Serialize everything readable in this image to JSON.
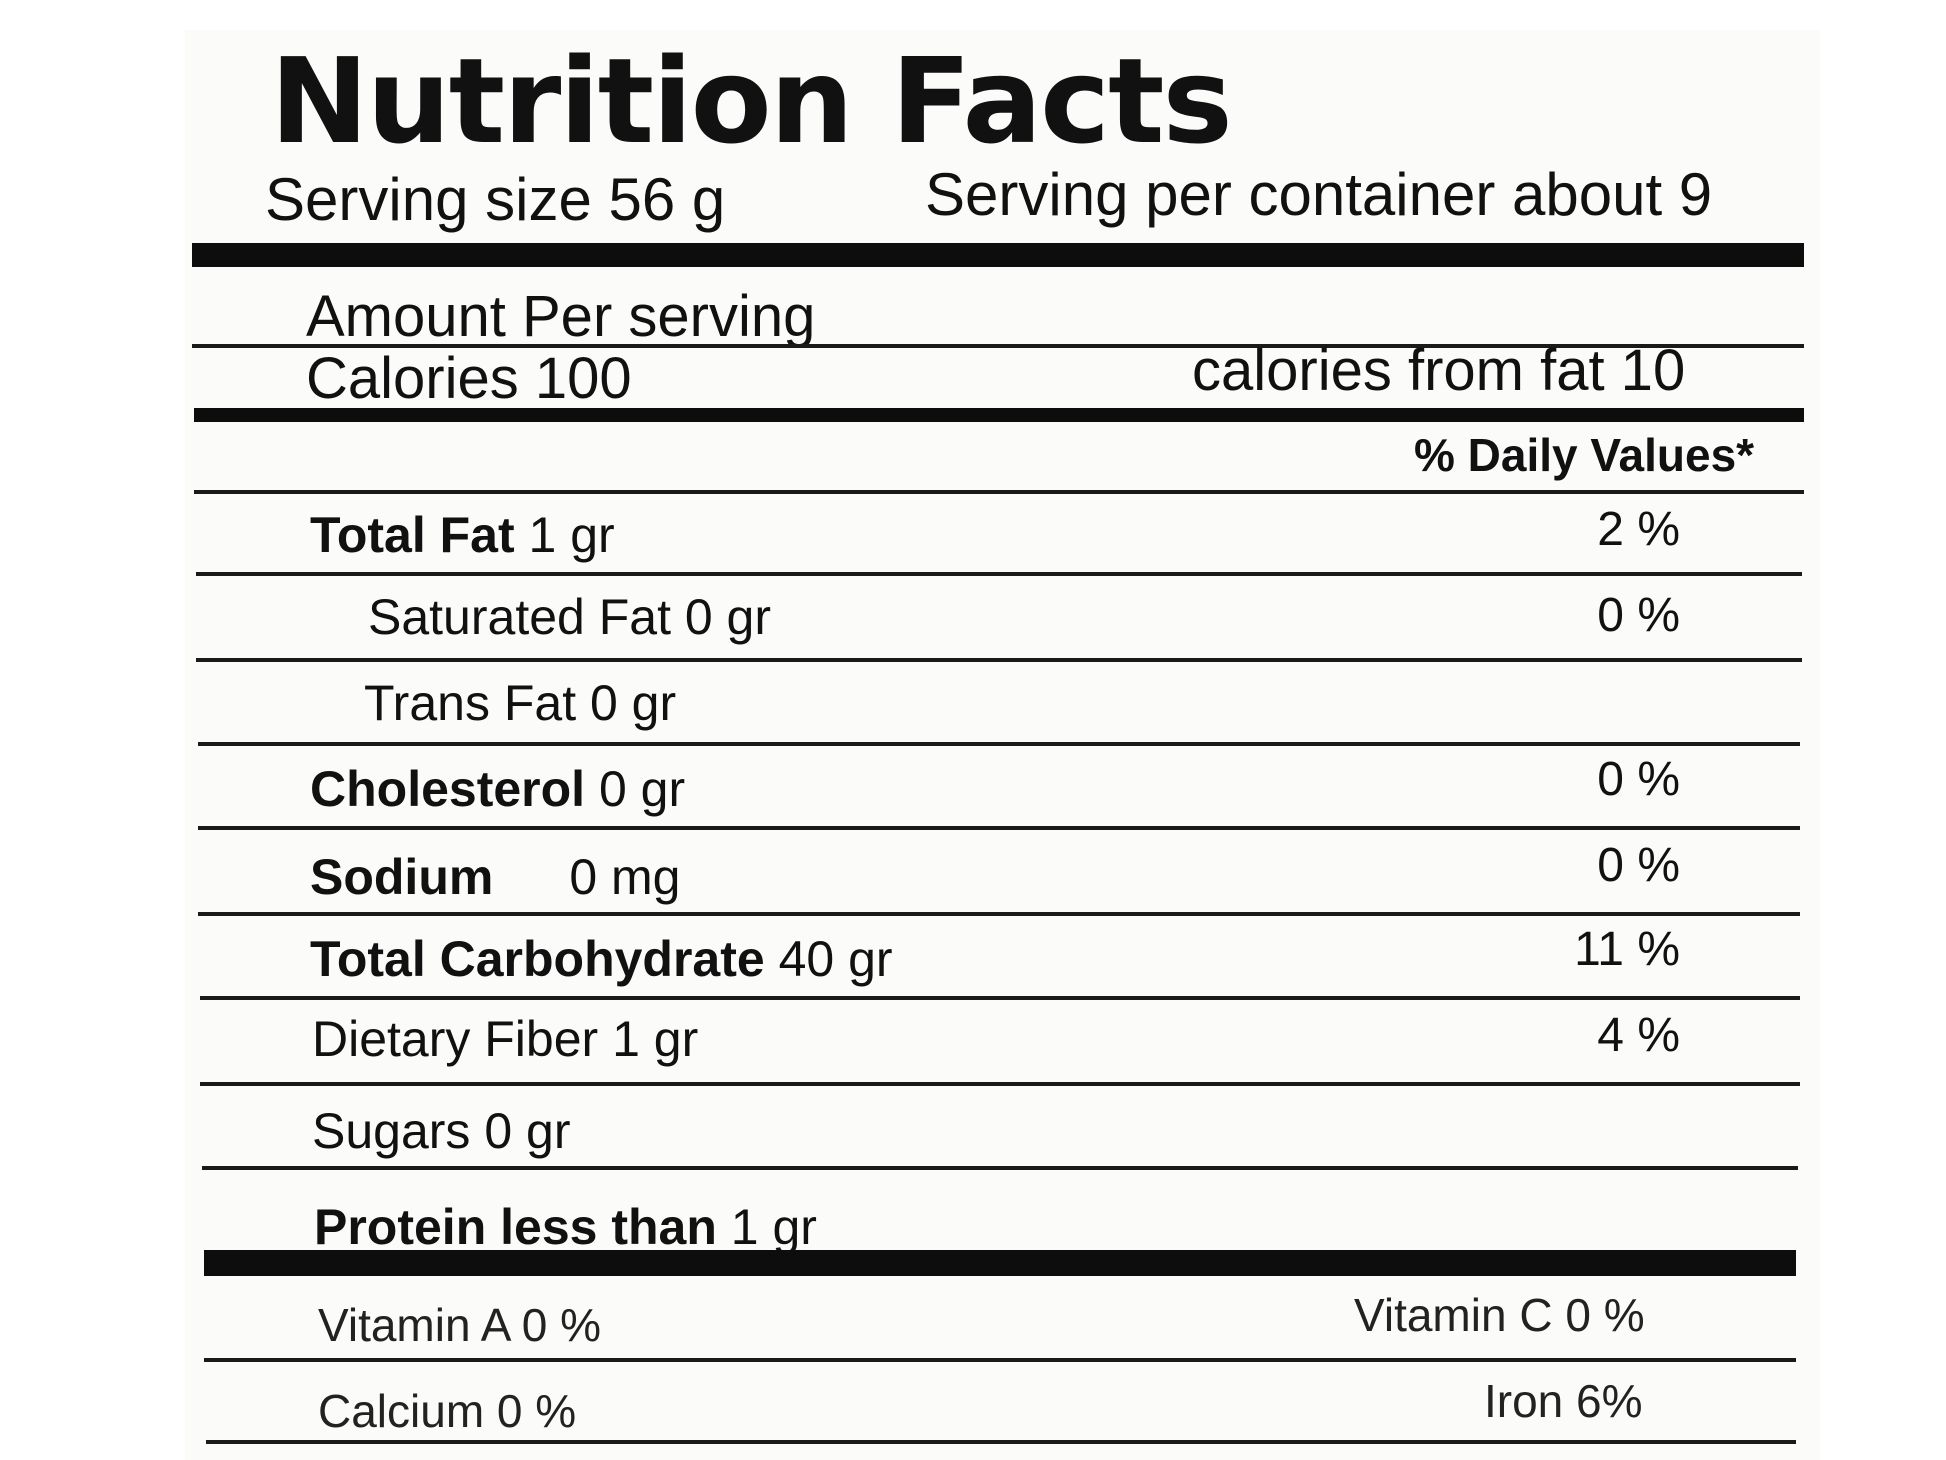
{
  "header": {
    "title": "Nutrition Facts",
    "serving_size": "Serving size 56 g",
    "servings_per_container": "Serving per container about  9"
  },
  "calories": {
    "amount_label": "Amount Per serving",
    "calories_label": "Calories 100",
    "calories_from_fat": "calories from fat 10"
  },
  "daily_values_header": "% Daily Values*",
  "nutrients": {
    "total_fat": {
      "name": "Total Fat",
      "amount": "1 gr",
      "dv": "2 %"
    },
    "saturated_fat": {
      "label": "Saturated Fat 0 gr",
      "dv": "0 %"
    },
    "trans_fat": {
      "label": "Trans Fat 0 gr"
    },
    "cholesterol": {
      "name": "Cholesterol",
      "amount": "0 gr",
      "dv": "0 %"
    },
    "sodium": {
      "name": "Sodium",
      "amount": "0 mg",
      "dv": "0 %"
    },
    "total_carbohydrate": {
      "name": "Total Carbohydrate",
      "amount": "40 gr",
      "dv": "11 %"
    },
    "dietary_fiber": {
      "label": "Dietary Fiber 1 gr",
      "dv": "4 %"
    },
    "sugars": {
      "label": "Sugars 0 gr"
    },
    "protein": {
      "name": "Protein less than",
      "amount": "1 gr"
    }
  },
  "vitamins": {
    "vitamin_a": "Vitamin A 0 %",
    "vitamin_c": "Vitamin C 0 %",
    "calcium": "Calcium 0 %",
    "iron": "Iron  6%"
  }
}
